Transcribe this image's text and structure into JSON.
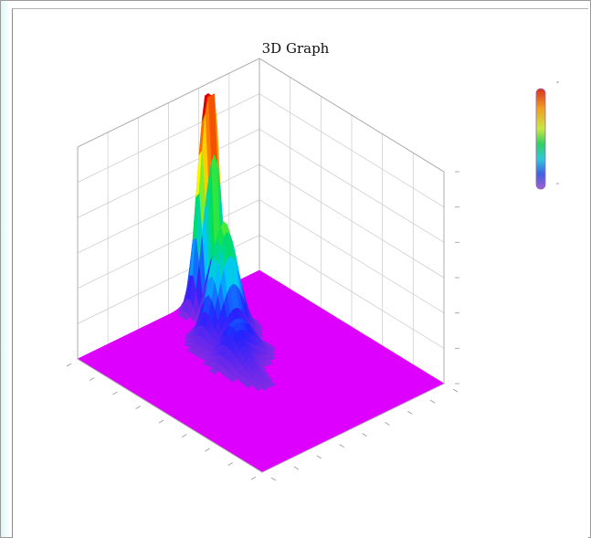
{
  "chart_data": {
    "type": "surface3d",
    "title": "3D Graph",
    "xlabel": "",
    "ylabel": "",
    "zlabel": "",
    "grid": true,
    "legend": "top-right",
    "colorscale": [
      "#8a2be2",
      "#2222ff",
      "#00c8ff",
      "#00e050",
      "#ffff00",
      "#ff8800",
      "#e00000"
    ],
    "base_color": "#dd00ff",
    "zlim": [
      0,
      1
    ],
    "peaks": [
      {
        "u": 0.06,
        "v": 0.68,
        "height": 0.95
      },
      {
        "u": 0.06,
        "v": 0.62,
        "height": 0.6
      },
      {
        "u": 0.25,
        "v": 0.55,
        "height": 0.55
      },
      {
        "u": 0.4,
        "v": 0.5,
        "height": 0.18
      }
    ]
  }
}
